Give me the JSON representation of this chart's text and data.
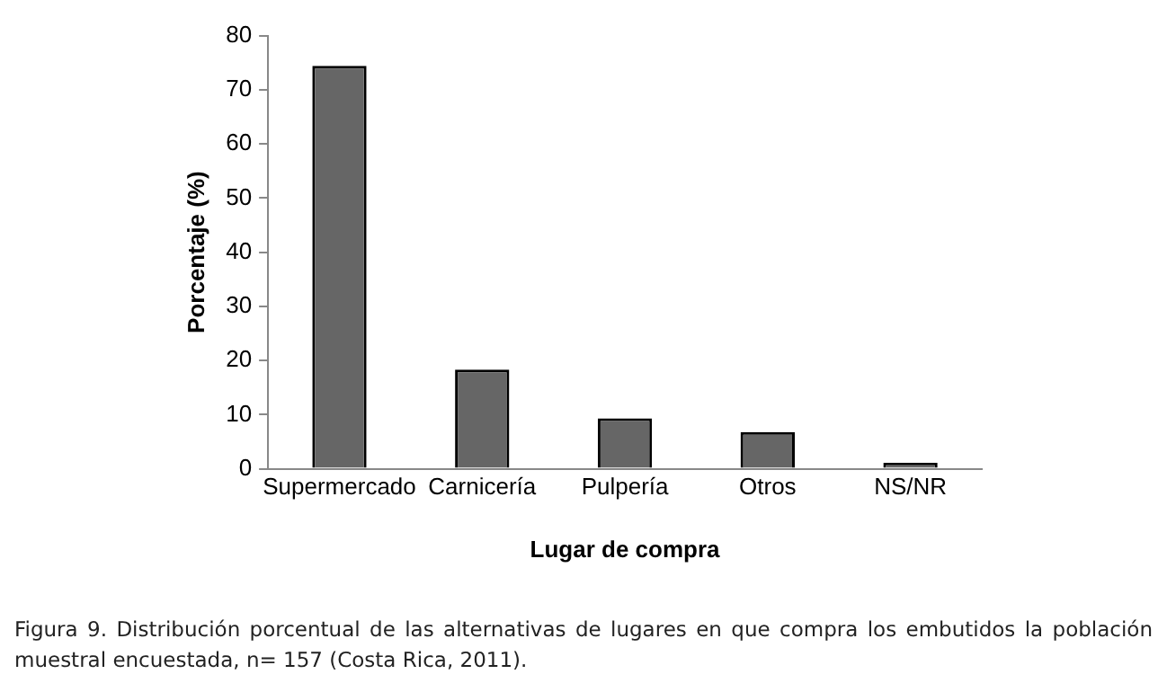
{
  "chart_data": {
    "type": "bar",
    "xlabel": "Lugar de compra",
    "ylabel": "Porcentaje (%)",
    "categories": [
      "Supermercado",
      "Carnicería",
      "Pulpería",
      "Otros",
      "NS/NR"
    ],
    "values": [
      74.4,
      18.3,
      9.3,
      6.8,
      1.1
    ],
    "color": "#666666",
    "ylim": [
      0,
      80
    ],
    "yticks": [
      0,
      10,
      20,
      30,
      40,
      50,
      60,
      70,
      80
    ],
    "grid": false,
    "legend": false,
    "annotations": [
      "Figura 9. Distribución porcentual de las alternativas de lugares en que compra los embutidos la población muestral encuestada, n= 157 (Costa Rica, 2011)."
    ]
  }
}
